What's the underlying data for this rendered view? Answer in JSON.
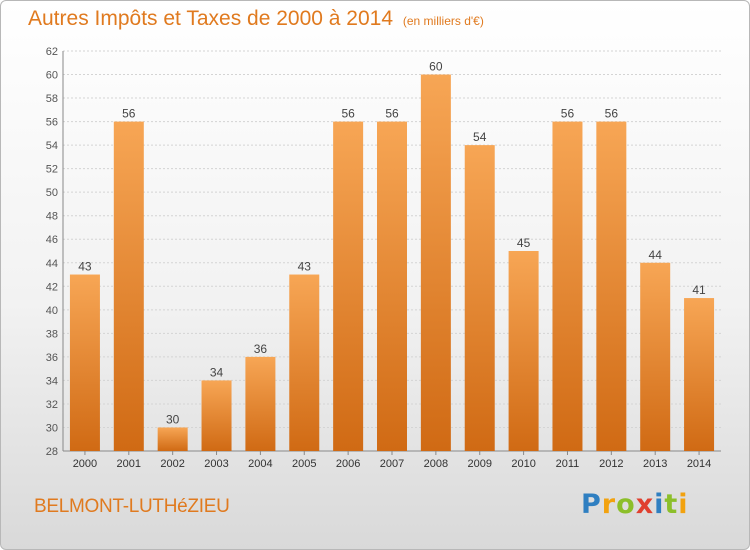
{
  "title": "Autres Impôts et Taxes de 2000 à 2014",
  "unit": "(en milliers d'€)",
  "commune": "BELMONT-LUTHéZIEU",
  "logo": {
    "p": "P",
    "r": "r",
    "o": "o",
    "x": "x",
    "i1": "i",
    "t": "t",
    "i2": "i"
  },
  "colors": {
    "bar": "#f59e4b",
    "bar_dark": "#d06a14",
    "title": "#e07a1f"
  },
  "chart_data": {
    "type": "bar",
    "categories": [
      "2000",
      "2001",
      "2002",
      "2003",
      "2004",
      "2005",
      "2006",
      "2007",
      "2008",
      "2009",
      "2010",
      "2011",
      "2012",
      "2013",
      "2014"
    ],
    "values": [
      43,
      56,
      30,
      34,
      36,
      43,
      56,
      56,
      60,
      54,
      45,
      56,
      56,
      44,
      41
    ],
    "ylim": [
      28,
      62
    ],
    "yticks": [
      28,
      30,
      32,
      34,
      36,
      38,
      40,
      42,
      44,
      46,
      48,
      50,
      52,
      54,
      56,
      58,
      60,
      62
    ],
    "grid": true
  }
}
